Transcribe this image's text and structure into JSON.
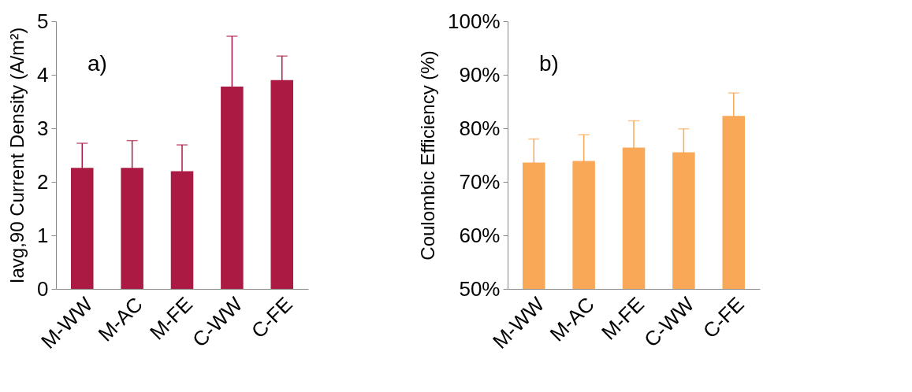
{
  "chart_data": [
    {
      "type": "bar",
      "categories": [
        "M-WW",
        "M-AC",
        "M-FE",
        "C-WW",
        "C-FE"
      ],
      "ylabel": "Iavg,90 Current Density (A/m²)",
      "annotations": [
        "a)"
      ],
      "series": [
        {
          "color": "#ab1a42",
          "values": [
            2.26,
            2.26,
            2.2,
            3.78,
            3.9
          ],
          "errors": [
            0.46,
            0.51,
            0.49,
            0.94,
            0.45
          ]
        }
      ],
      "ylim": [
        0,
        5
      ],
      "yticks": [
        0,
        1,
        2,
        3,
        4,
        5
      ],
      "grid": false
    },
    {
      "type": "bar",
      "categories": [
        "M-WW",
        "M-AC",
        "M-FE",
        "C-WW",
        "C-FE"
      ],
      "ylabel": "Coulombic Efficiency (%)",
      "annotations": [
        "b)"
      ],
      "series": [
        {
          "color": "#f9a857",
          "values": [
            73.6,
            73.9,
            76.4,
            75.5,
            82.3
          ],
          "errors": [
            4.4,
            4.9,
            5.0,
            4.4,
            4.3
          ]
        }
      ],
      "ylim": [
        50,
        100
      ],
      "yticks": [
        {
          "value": 50,
          "label": "50%"
        },
        {
          "value": 60,
          "label": "60%"
        },
        {
          "value": 70,
          "label": "70%"
        },
        {
          "value": 80,
          "label": "80%"
        },
        {
          "value": 90,
          "label": "90%"
        },
        {
          "value": 100,
          "label": "100%"
        }
      ],
      "grid": false
    }
  ]
}
